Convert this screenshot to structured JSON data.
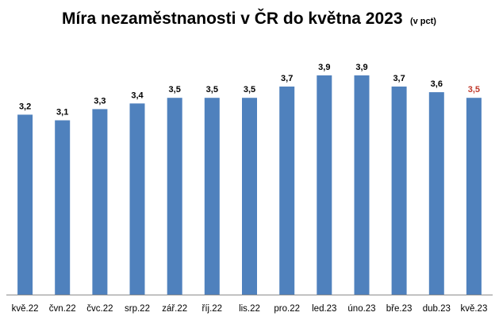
{
  "chart_data": {
    "type": "bar",
    "title": "Míra nezaměstnanosti v ČR do května 2023",
    "subtitle": "(v pct)",
    "categories": [
      "kvě.22",
      "čvn.22",
      "čvc.22",
      "srp.22",
      "zář.22",
      "říj.22",
      "lis.22",
      "pro.22",
      "led.23",
      "úno.23",
      "bře.23",
      "dub.23",
      "kvě.23"
    ],
    "values": [
      3.2,
      3.1,
      3.3,
      3.4,
      3.5,
      3.5,
      3.5,
      3.7,
      3.9,
      3.9,
      3.7,
      3.6,
      3.5
    ],
    "data_labels": [
      "3,2",
      "3,1",
      "3,3",
      "3,4",
      "3,5",
      "3,5",
      "3,5",
      "3,7",
      "3,9",
      "3,9",
      "3,7",
      "3,6",
      "3,5"
    ],
    "highlight_index": 12,
    "ylim": [
      0,
      4.1
    ],
    "grid": false,
    "legend": "none",
    "colors": {
      "bar": "#4F81BD",
      "label": "#000000",
      "highlight_label": "#C0392B",
      "axis": "#8C8C8C"
    }
  }
}
